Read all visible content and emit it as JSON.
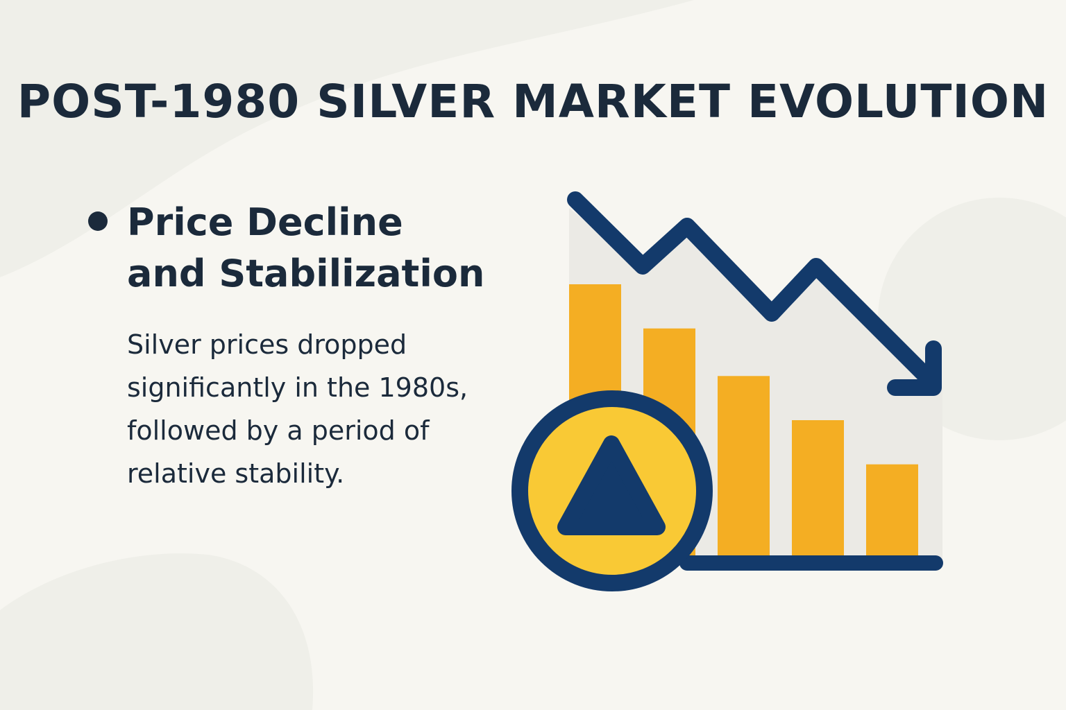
{
  "title": "POST-1980 SILVER MARKET EVOLUTION",
  "section": {
    "heading_lines": [
      "Price Decline",
      "and Stabilization"
    ],
    "body_lines": [
      "Silver prices dropped",
      "significantly in the 1980s,",
      "followed by a period of",
      "relative stability."
    ]
  },
  "illustration": {
    "type": "declining-bar-chart-icon",
    "bar_levels": [
      0.8,
      0.67,
      0.53,
      0.4,
      0.27
    ],
    "badge_icon": "warning-triangle-icon",
    "trend_icon": "down-trend-arrow-icon"
  },
  "colors": {
    "background": "#f7f6f1",
    "text": "#1b2a3b",
    "navy": "#133a6b",
    "bar_yellow": "#f4ae23",
    "badge_yellow": "#f9c935",
    "chart_panel": "#ebeae5"
  }
}
